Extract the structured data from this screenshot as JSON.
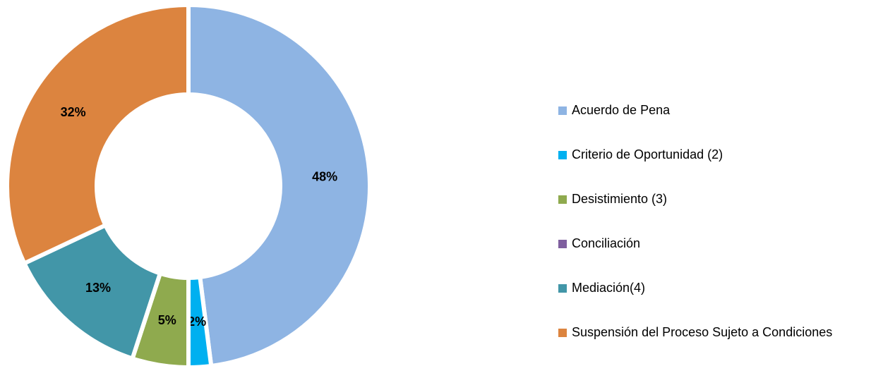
{
  "chart_data": {
    "type": "pie",
    "donut": true,
    "categories": [
      "Acuerdo de Pena",
      "Criterio de Oportunidad (2)",
      "Desistimiento (3)",
      "Conciliación",
      "Mediación(4)",
      "Suspensión del Proceso Sujeto a Condiciones"
    ],
    "values": [
      48,
      2,
      5,
      0,
      13,
      32
    ],
    "value_labels": [
      "48%",
      "2%",
      "5%",
      null,
      "13%",
      "32%"
    ],
    "colors": [
      "#8eb4e3",
      "#00b0f0",
      "#8faa4e",
      "#7f5f9f",
      "#4296a8",
      "#dc843f"
    ],
    "legend": "right"
  }
}
